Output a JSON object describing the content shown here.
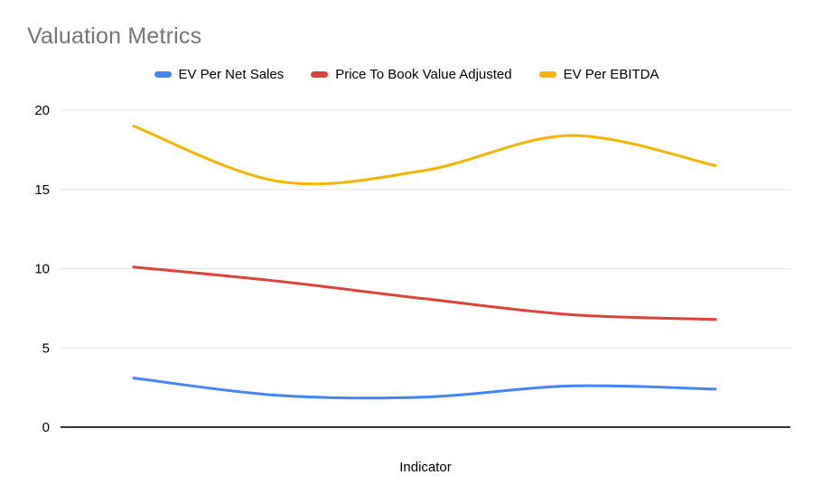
{
  "title": "Valuation Metrics",
  "x_axis_title": "Indicator",
  "colors": {
    "title_text": "#757575",
    "legend_text": "#000000",
    "tick_text": "#000000",
    "gridline": "#e3e3e3",
    "zero_axis": "#333333",
    "background": "#ffffff",
    "series_blue": "#4285f4",
    "series_red": "#db4437",
    "series_yellow": "#f4b400"
  },
  "chart_data": {
    "type": "line",
    "smooth": true,
    "title": "Valuation Metrics",
    "xlabel": "Indicator",
    "ylabel": "",
    "ylim": [
      0,
      20
    ],
    "y_ticks": [
      0,
      5,
      10,
      15,
      20
    ],
    "x_tick_labels_visible": false,
    "grid": true,
    "legend_position": "top",
    "num_points": 5,
    "series": [
      {
        "name": "EV Per Net Sales",
        "color": "#4285f4",
        "values": [
          3.1,
          2.0,
          1.9,
          2.6,
          2.4
        ]
      },
      {
        "name": "Price To Book Value Adjusted",
        "color": "#db4437",
        "values": [
          10.1,
          9.2,
          8.1,
          7.1,
          6.8
        ]
      },
      {
        "name": "EV Per EBITDA",
        "color": "#f4b400",
        "values": [
          19.0,
          15.5,
          16.2,
          18.4,
          16.5
        ]
      }
    ]
  }
}
